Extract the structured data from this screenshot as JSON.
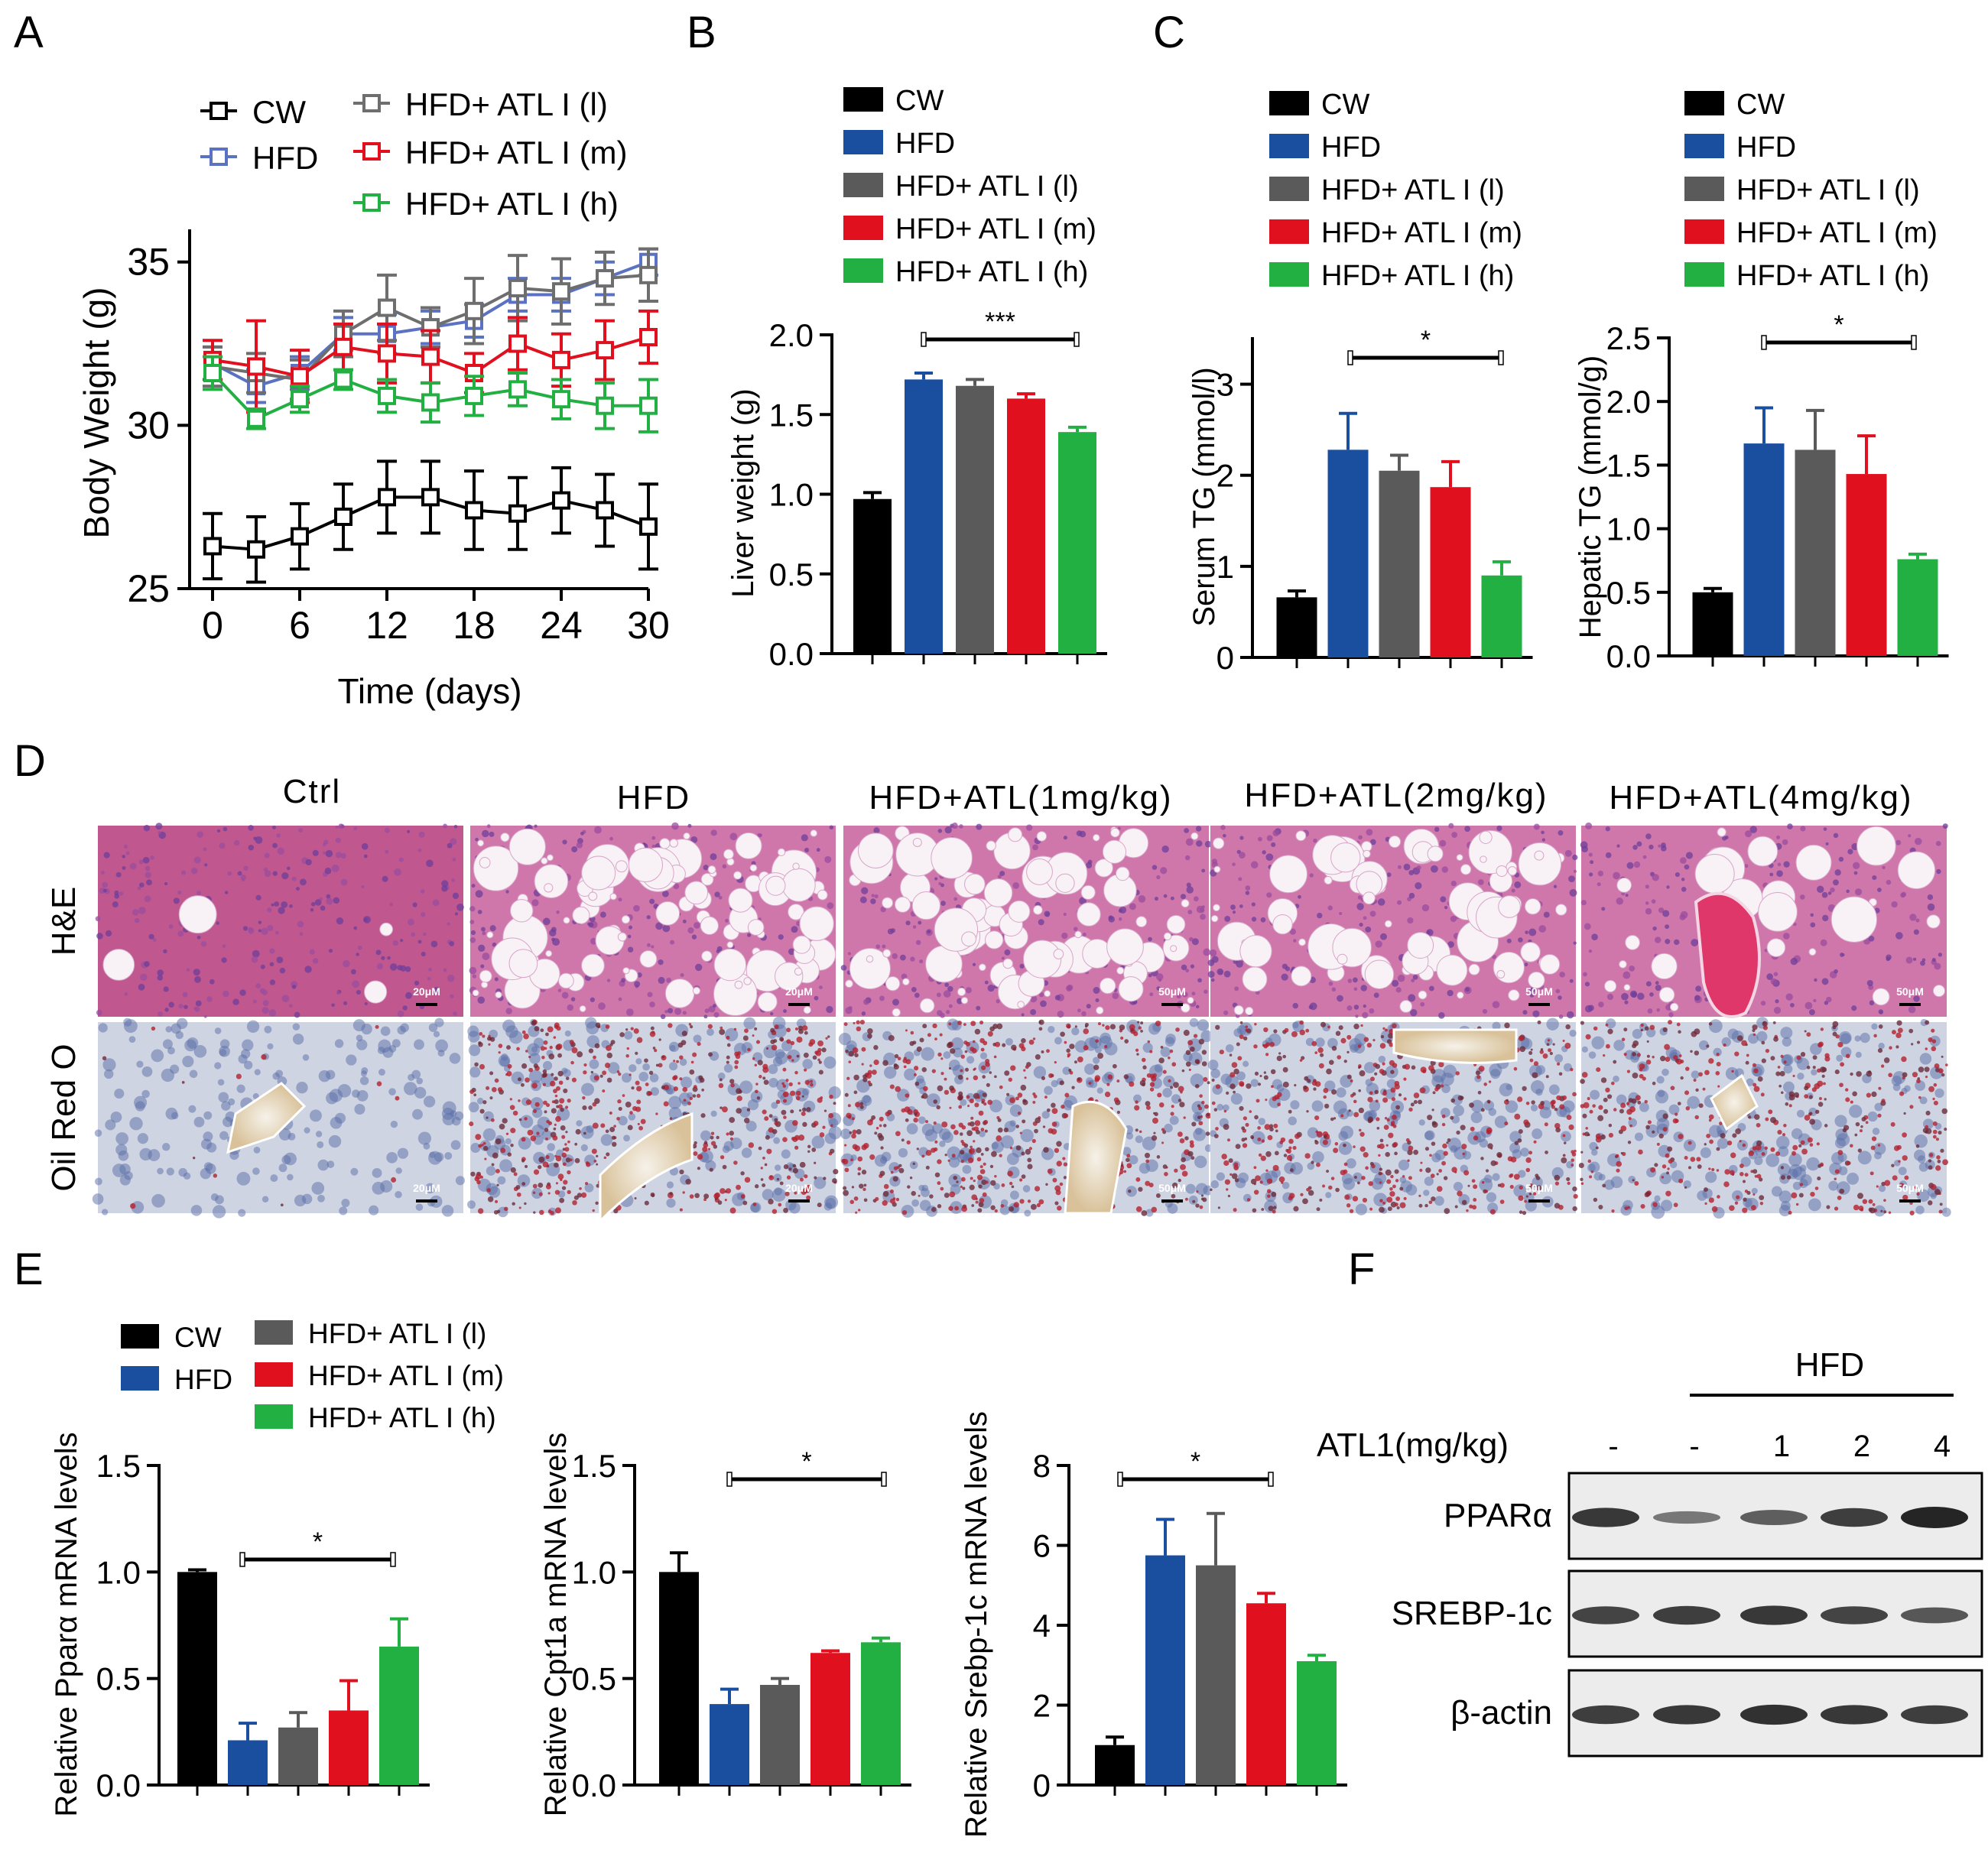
{
  "colors": {
    "cw": "#000000",
    "hfd": "#1a4fa0",
    "l": "#5a5a5a",
    "m": "#e0101e",
    "h": "#22b043",
    "hfd_line": "#5b72c2",
    "l_line": "#6e6e6e"
  },
  "panel_labels": [
    "A",
    "B",
    "C",
    "D",
    "E",
    "F"
  ],
  "legend": {
    "cw": "CW",
    "hfd": "HFD",
    "l": "HFD+ ATL I (l)",
    "m": "HFD+ ATL I (m)",
    "h": "HFD+ ATL I (h)"
  },
  "chart_data": [
    {
      "id": "A",
      "type": "line",
      "xlabel": "Time (days)",
      "ylabel": "Body Weight (g)",
      "xlim": [
        0,
        30
      ],
      "ylim": [
        25,
        36
      ],
      "xticks": [
        0,
        6,
        12,
        18,
        24,
        30
      ],
      "yticks": [
        25,
        30,
        35
      ],
      "x": [
        0,
        3,
        6,
        9,
        12,
        15,
        18,
        21,
        24,
        27,
        30
      ],
      "series": [
        {
          "name": "CW",
          "color_key": "cw",
          "values": [
            26.3,
            26.2,
            26.6,
            27.2,
            27.8,
            27.8,
            27.4,
            27.3,
            27.7,
            27.4,
            26.9
          ],
          "err": [
            1.0,
            1.0,
            1.0,
            1.0,
            1.1,
            1.1,
            1.2,
            1.1,
            1.0,
            1.1,
            1.3
          ]
        },
        {
          "name": "HFD",
          "color_key": "hfd_line",
          "values": [
            31.9,
            31.2,
            31.6,
            32.8,
            32.8,
            33.0,
            33.2,
            34.0,
            34.0,
            34.5,
            35.0
          ],
          "err": [
            0.5,
            0.5,
            0.5,
            0.5,
            0.6,
            0.5,
            0.5,
            0.5,
            0.5,
            0.5,
            0.4
          ]
        },
        {
          "name": "HFD+ ATL I (l)",
          "color_key": "l_line",
          "values": [
            31.8,
            31.6,
            31.4,
            32.8,
            33.6,
            33.0,
            33.5,
            34.2,
            34.1,
            34.5,
            34.6
          ],
          "err": [
            0.6,
            0.6,
            0.6,
            0.7,
            1.0,
            0.6,
            1.0,
            1.0,
            1.0,
            0.8,
            0.8
          ]
        },
        {
          "name": "HFD+ ATL I (m)",
          "color_key": "m",
          "values": [
            32.0,
            31.8,
            31.5,
            32.4,
            32.2,
            32.1,
            31.6,
            32.5,
            32.0,
            32.3,
            32.7
          ],
          "err": [
            0.6,
            1.4,
            0.8,
            0.7,
            0.9,
            0.8,
            0.6,
            0.8,
            0.8,
            0.9,
            0.8
          ]
        },
        {
          "name": "HFD+ ATL I (h)",
          "color_key": "h",
          "values": [
            31.6,
            30.2,
            30.8,
            31.4,
            30.9,
            30.7,
            30.9,
            31.1,
            30.8,
            30.6,
            30.6
          ],
          "err": [
            0.5,
            0.3,
            0.4,
            0.3,
            0.5,
            0.6,
            0.6,
            0.5,
            0.6,
            0.7,
            0.8
          ]
        }
      ]
    },
    {
      "id": "B",
      "type": "bar",
      "ylabel": "Liver weight (g)",
      "ylim": [
        0,
        2.0
      ],
      "yticks": [
        "0.0",
        "0.5",
        "1.0",
        "1.5",
        "2.0"
      ],
      "categories": [
        "CW",
        "HFD",
        "HFD+ ATL I (l)",
        "HFD+ ATL I (m)",
        "HFD+ ATL I (h)"
      ],
      "values": [
        0.97,
        1.72,
        1.68,
        1.6,
        1.39
      ],
      "err": [
        0.04,
        0.04,
        0.04,
        0.03,
        0.03
      ],
      "significance": "***"
    },
    {
      "id": "C1",
      "type": "bar",
      "ylabel": "Serum TG (mmol/l)",
      "ylim": [
        0,
        3.5
      ],
      "yticks": [
        "0",
        "1",
        "2",
        "3"
      ],
      "categories": [
        "CW",
        "HFD",
        "HFD+ ATL I (l)",
        "HFD+ ATL I (m)",
        "HFD+ ATL I (h)"
      ],
      "values": [
        0.66,
        2.28,
        2.05,
        1.87,
        0.9
      ],
      "err": [
        0.07,
        0.4,
        0.17,
        0.28,
        0.15
      ],
      "significance": "*"
    },
    {
      "id": "C2",
      "type": "bar",
      "ylabel": "Hepatic TG (mmol/g)",
      "ylim": [
        0,
        2.5
      ],
      "yticks": [
        "0.0",
        "0.5",
        "1.0",
        "1.5",
        "2.0",
        "2.5"
      ],
      "categories": [
        "CW",
        "HFD",
        "HFD+ ATL I (l)",
        "HFD+ ATL I (m)",
        "HFD+ ATL I (h)"
      ],
      "values": [
        0.5,
        1.67,
        1.62,
        1.43,
        0.76
      ],
      "err": [
        0.03,
        0.28,
        0.31,
        0.3,
        0.04
      ],
      "significance": "*"
    },
    {
      "id": "E1",
      "type": "bar",
      "ylabel": "Relative Pparα mRNA levels",
      "ylim": [
        0,
        1.5
      ],
      "yticks": [
        "0.0",
        "0.5",
        "1.0",
        "1.5"
      ],
      "categories": [
        "CW",
        "HFD",
        "HFD+ ATL I (l)",
        "HFD+ ATL I (m)",
        "HFD+ ATL I (h)"
      ],
      "values": [
        1.0,
        0.21,
        0.27,
        0.35,
        0.65
      ],
      "err": [
        0.01,
        0.08,
        0.07,
        0.14,
        0.13
      ],
      "significance": "*"
    },
    {
      "id": "E2",
      "type": "bar",
      "ylabel": "Relative Cpt1a mRNA levels",
      "ylim": [
        0,
        1.5
      ],
      "yticks": [
        "0.0",
        "0.5",
        "1.0",
        "1.5"
      ],
      "categories": [
        "CW",
        "HFD",
        "HFD+ ATL I (l)",
        "HFD+ ATL I (m)",
        "HFD+ ATL I (h)"
      ],
      "values": [
        1.0,
        0.38,
        0.47,
        0.62,
        0.67
      ],
      "err": [
        0.09,
        0.07,
        0.03,
        0.01,
        0.02
      ],
      "significance": "*"
    },
    {
      "id": "E3",
      "type": "bar",
      "ylabel": "Relative Srebp-1c mRNA levels",
      "ylim": [
        0,
        8
      ],
      "yticks": [
        "0",
        "2",
        "4",
        "6",
        "8"
      ],
      "categories": [
        "CW",
        "HFD",
        "HFD+ ATL I (l)",
        "HFD+ ATL I (m)",
        "HFD+ ATL I (h)"
      ],
      "values": [
        1.0,
        5.75,
        5.5,
        4.55,
        3.1
      ],
      "err": [
        0.2,
        0.9,
        1.3,
        0.25,
        0.15
      ],
      "significance": "*"
    }
  ],
  "histology": {
    "columns": [
      "Ctrl",
      "HFD",
      "HFD+ATL(1mg/kg)",
      "HFD+ATL(2mg/kg)",
      "HFD+ATL(4mg/kg)"
    ],
    "rows": [
      "H&E",
      "Oil Red O"
    ],
    "scale_bars": [
      [
        "20μM",
        "20μM",
        "50μM",
        "50μM",
        "50μM"
      ],
      [
        "20μM",
        "20μM",
        "50μM",
        "50μM",
        "50μM"
      ]
    ]
  },
  "western": {
    "group_label": "HFD",
    "dose_label": "ATL1(mg/kg)",
    "lanes": [
      "-",
      "-",
      "1",
      "2",
      "4"
    ],
    "proteins": [
      "PPARα",
      "SREBP-1c",
      "β-actin"
    ],
    "intensity": [
      [
        0.85,
        0.35,
        0.55,
        0.8,
        1.0
      ],
      [
        0.75,
        0.8,
        0.85,
        0.75,
        0.6
      ],
      [
        0.8,
        0.85,
        0.9,
        0.85,
        0.8
      ]
    ]
  }
}
